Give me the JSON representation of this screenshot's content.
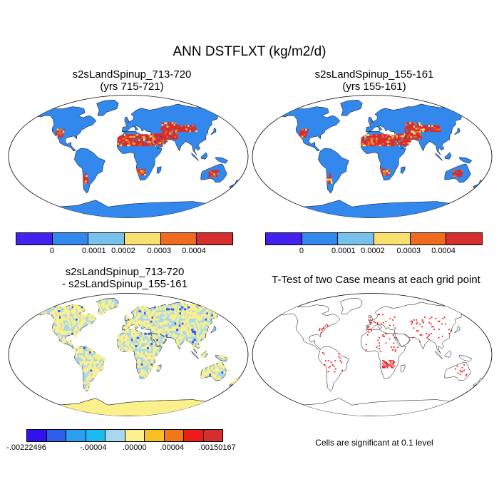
{
  "title": "ANN DSTFLXT (kg/m2/d)",
  "panels": [
    {
      "title_line1": "s2sLandSpinup_713-720",
      "title_line2": "(yrs 715-721)"
    },
    {
      "title_line1": "s2sLandSpinup_155-161",
      "title_line2": "(yrs 155-161)"
    },
    {
      "title_line1": "s2sLandSpinup_713-720",
      "title_line2": "- s2sLandSpinup_155-161"
    },
    {
      "title_line1": "T-Test of two Case means at each grid point",
      "title_line2": ""
    }
  ],
  "colorbar_top": {
    "colors": [
      "#4422ee",
      "#3388ee",
      "#77c2ec",
      "#f8e070",
      "#f06a20",
      "#d42e2e"
    ],
    "labels": [
      "0",
      "0.0001",
      "0.0002",
      "0.0003",
      "0.0004"
    ]
  },
  "colorbar_diff": {
    "colors": [
      "#3311ee",
      "#2f5fe8",
      "#2a9ff0",
      "#18baf0",
      "#a8d8f0",
      "#fcf08c",
      "#f8c020",
      "#f07818",
      "#ee1a1a",
      "#d42e2e"
    ],
    "labels": [
      "-.00222496",
      "-.00004",
      ".00000",
      ".00004",
      ".00150167"
    ]
  },
  "significance_note": "Cells are significant at 0.1 level",
  "map_colors": {
    "ocean": "#ffffff",
    "land_base_top": "#3388ee",
    "dust_high": "#d42e2e",
    "dust_mid": "#f06a20",
    "dust_low": "#f8e070",
    "diff_land": "#a8d8f0",
    "diff_pos": "#fcf08c",
    "diff_neg": "#2f5fe8",
    "ttest_dots": "#ee1a1a"
  }
}
